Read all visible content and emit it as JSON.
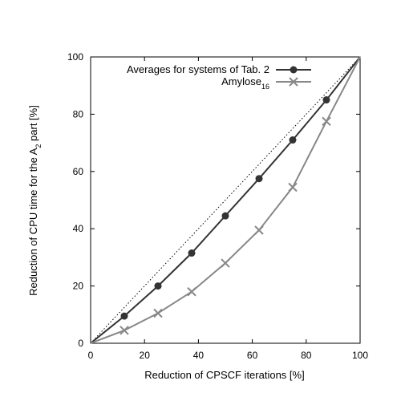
{
  "chart_data": {
    "type": "line",
    "xlabel": "Reduction of CPSCF iterations [%]",
    "ylabel": {
      "prefix": "Reduction of CPU time for the A",
      "subscript": "2",
      "suffix": " part [%]"
    },
    "xlim": [
      0,
      100
    ],
    "ylim": [
      0,
      100
    ],
    "xticks": [
      "0",
      "20",
      "40",
      "60",
      "80",
      "100"
    ],
    "yticks": [
      "0",
      "20",
      "40",
      "60",
      "80",
      "100"
    ],
    "grid": false,
    "legend_position": "top-right",
    "reference_line": {
      "style": "dotted",
      "points": [
        [
          0,
          0
        ],
        [
          100,
          100
        ]
      ]
    },
    "series": [
      {
        "name": "Averages for systems of Tab. 2",
        "marker": "circle",
        "color": "#333333",
        "points": [
          [
            0,
            0
          ],
          [
            12.5,
            9.5
          ],
          [
            25,
            20
          ],
          [
            37.5,
            31.5
          ],
          [
            50,
            44.5
          ],
          [
            62.5,
            57.5
          ],
          [
            75,
            71
          ],
          [
            87.5,
            85
          ],
          [
            100,
            100
          ]
        ]
      },
      {
        "name": "Amylose",
        "name_subscript": "16",
        "marker": "x",
        "color": "#888888",
        "points": [
          [
            0,
            0
          ],
          [
            12.5,
            4.5
          ],
          [
            25,
            10.5
          ],
          [
            37.5,
            18
          ],
          [
            50,
            28
          ],
          [
            62.5,
            39.5
          ],
          [
            75,
            54.5
          ],
          [
            87.5,
            77.5
          ],
          [
            100,
            100
          ]
        ]
      }
    ]
  }
}
